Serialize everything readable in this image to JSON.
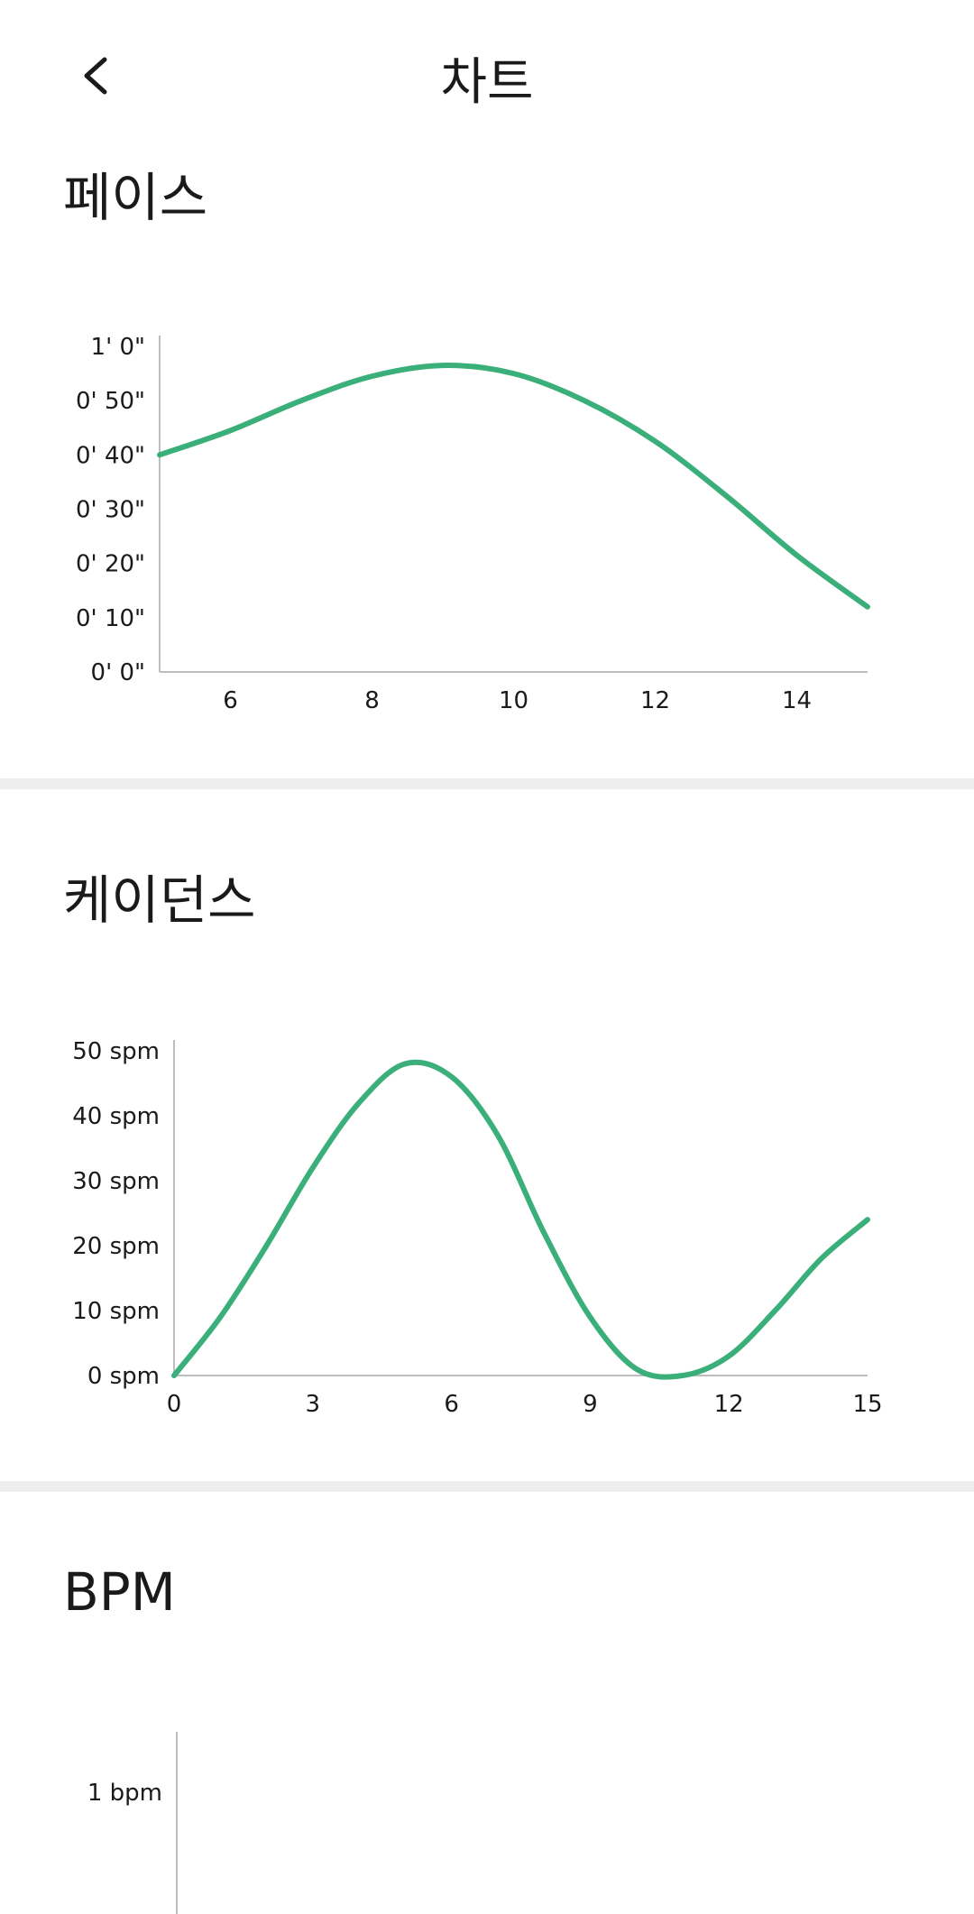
{
  "header": {
    "title": "차트",
    "back_icon": "chevron-left-icon"
  },
  "sections": {
    "pace": {
      "title": "페이스"
    },
    "cadence": {
      "title": "케이던스"
    },
    "bpm": {
      "title": "BPM"
    }
  },
  "colors": {
    "line": "#3aaf7a",
    "axis": "#bdbdbd",
    "divider": "#eeeeee"
  },
  "chart_data": [
    {
      "type": "line",
      "title": "",
      "x": [
        5,
        6,
        7,
        8,
        9,
        10,
        11,
        12,
        13,
        14,
        15
      ],
      "series": [
        {
          "values": [
            40,
            44.5,
            50,
            54.5,
            56.5,
            55,
            50,
            42.5,
            32.5,
            21.5,
            12
          ]
        }
      ],
      "xlim": [
        5,
        15
      ],
      "ylim": [
        0,
        60
      ],
      "x_ticks": [
        6,
        8,
        10,
        12,
        14
      ],
      "x_tick_labels": [
        "6",
        "8",
        "10",
        "12",
        "14"
      ],
      "y_ticks": [
        0,
        10,
        20,
        30,
        40,
        50,
        60
      ],
      "y_tick_labels": [
        "0' 0\"",
        "0' 10\"",
        "0' 20\"",
        "0' 30\"",
        "0' 40\"",
        "0' 50\"",
        "1' 0\""
      ],
      "grid": false
    },
    {
      "type": "line",
      "title": "",
      "x": [
        0,
        1,
        2,
        3,
        4,
        5,
        6,
        7,
        8,
        9,
        10,
        11,
        12,
        13,
        14,
        15
      ],
      "series": [
        {
          "values": [
            0,
            9,
            20,
            32,
            42,
            48,
            46,
            37,
            22,
            9,
            1,
            0,
            3,
            10,
            18,
            24
          ]
        }
      ],
      "xlim": [
        0,
        15
      ],
      "ylim": [
        0,
        50
      ],
      "x_ticks": [
        0,
        3,
        6,
        9,
        12,
        15
      ],
      "x_tick_labels": [
        "0",
        "3",
        "6",
        "9",
        "12",
        "15"
      ],
      "y_ticks": [
        0,
        10,
        20,
        30,
        40,
        50
      ],
      "y_tick_labels": [
        "0 spm",
        "10 spm",
        "20 spm",
        "30 spm",
        "40 spm",
        "50 spm"
      ],
      "grid": false
    },
    {
      "type": "line",
      "title": "",
      "x": [],
      "series": [
        {
          "values": []
        }
      ],
      "y_ticks": [
        1
      ],
      "y_tick_labels": [
        "1 bpm"
      ],
      "grid": false
    }
  ]
}
